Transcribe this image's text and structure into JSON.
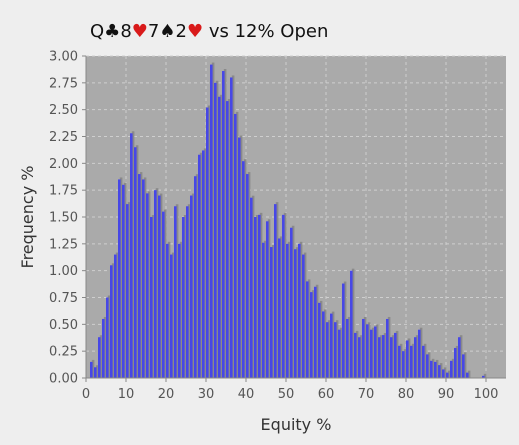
{
  "chart_data": {
    "type": "bar",
    "title_parts": [
      {
        "text": "Q",
        "color": "#111111"
      },
      {
        "text": "♣",
        "color": "#111111"
      },
      {
        "text": "8",
        "color": "#111111"
      },
      {
        "text": "♥",
        "color": "#d91a1a"
      },
      {
        "text": "7",
        "color": "#111111"
      },
      {
        "text": "♠",
        "color": "#111111"
      },
      {
        "text": "2",
        "color": "#111111"
      },
      {
        "text": "♥",
        "color": "#d91a1a"
      },
      {
        "text": " vs 12% Open",
        "color": "#111111"
      }
    ],
    "xlabel": "Equity %",
    "ylabel": "Frequency %",
    "xlim": [
      0,
      105
    ],
    "ylim": [
      0,
      3.0
    ],
    "x_ticks": [
      0,
      10,
      20,
      30,
      40,
      50,
      60,
      70,
      80,
      90,
      100
    ],
    "y_ticks": [
      "0.00",
      "0.25",
      "0.50",
      "0.75",
      "1.00",
      "1.25",
      "1.50",
      "1.75",
      "2.00",
      "2.25",
      "2.50",
      "2.75",
      "3.00"
    ],
    "grid": true,
    "colors": {
      "bar": "#4747e6",
      "bar_shadow": "#8a8a8a",
      "plot_bg": "#aaaaaa",
      "page_bg": "#eeeeee",
      "grid": "#cfcfcf",
      "heart": "#d91a1a"
    },
    "bar_width": 1,
    "bins_start": 1,
    "values": [
      0.15,
      0.1,
      0.38,
      0.55,
      0.75,
      1.05,
      1.15,
      1.85,
      1.8,
      1.62,
      2.28,
      2.15,
      1.9,
      1.85,
      1.72,
      1.5,
      1.75,
      1.7,
      1.55,
      1.25,
      1.15,
      1.6,
      1.25,
      1.5,
      1.6,
      1.7,
      1.88,
      2.08,
      2.12,
      2.52,
      2.92,
      2.75,
      2.62,
      2.86,
      2.58,
      2.8,
      2.46,
      2.24,
      2.02,
      1.9,
      1.68,
      1.5,
      1.52,
      1.26,
      1.46,
      1.22,
      1.62,
      1.3,
      1.52,
      1.25,
      1.4,
      1.2,
      1.25,
      1.15,
      0.9,
      0.8,
      0.85,
      0.7,
      0.62,
      0.52,
      0.6,
      0.52,
      0.45,
      0.88,
      0.55,
      1.0,
      0.42,
      0.38,
      0.55,
      0.5,
      0.45,
      0.48,
      0.38,
      0.4,
      0.55,
      0.38,
      0.42,
      0.3,
      0.25,
      0.35,
      0.3,
      0.38,
      0.45,
      0.3,
      0.22,
      0.16,
      0.15,
      0.12,
      0.08,
      0.05,
      0.16,
      0.28,
      0.38,
      0.22,
      0.05,
      0.0,
      0.0,
      0.0,
      0.02,
      0.0
    ]
  }
}
